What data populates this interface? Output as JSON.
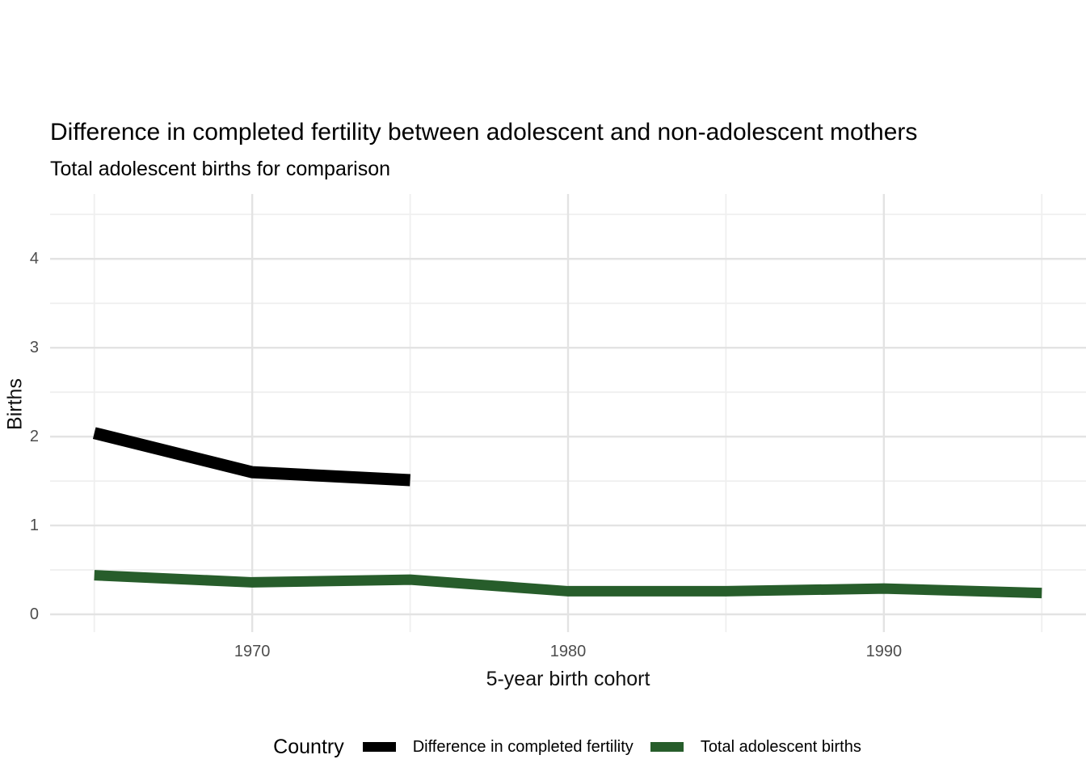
{
  "chart_data": {
    "type": "line",
    "title": "Difference in completed fertility between adolescent and non-adolescent mothers",
    "subtitle": "Total adolescent births for comparison",
    "xlabel": "5-year birth cohort",
    "ylabel": "Births",
    "legend": {
      "title": "Country",
      "position": "bottom"
    },
    "xlim": [
      1963.6,
      1996.4
    ],
    "ylim": [
      -0.2,
      4.73
    ],
    "x_ticks": {
      "major": [
        1970,
        1980,
        1990
      ],
      "minor": [
        1965,
        1975,
        1985,
        1995
      ]
    },
    "y_ticks": {
      "major": [
        0,
        1,
        2,
        3,
        4
      ],
      "minor": [
        0.5,
        1.5,
        2.5,
        3.5,
        4.5
      ]
    },
    "grid": true,
    "series": [
      {
        "name": "Difference in completed fertility",
        "color": "#000000",
        "linewidth": 15,
        "x": [
          1965,
          1970,
          1975
        ],
        "values": [
          2.04,
          1.6,
          1.51
        ]
      },
      {
        "name": "Total adolescent births",
        "color": "#275d2b",
        "linewidth": 13,
        "x": [
          1965,
          1970,
          1975,
          1980,
          1985,
          1990,
          1995
        ],
        "values": [
          0.44,
          0.36,
          0.39,
          0.26,
          0.26,
          0.29,
          0.24
        ]
      }
    ],
    "style": {
      "background": "#ffffff",
      "grid_major_color": "#e3e3e3",
      "grid_minor_color": "#efefef",
      "tick_label_color": "#4d4d4d",
      "text_color": "#000000"
    }
  }
}
